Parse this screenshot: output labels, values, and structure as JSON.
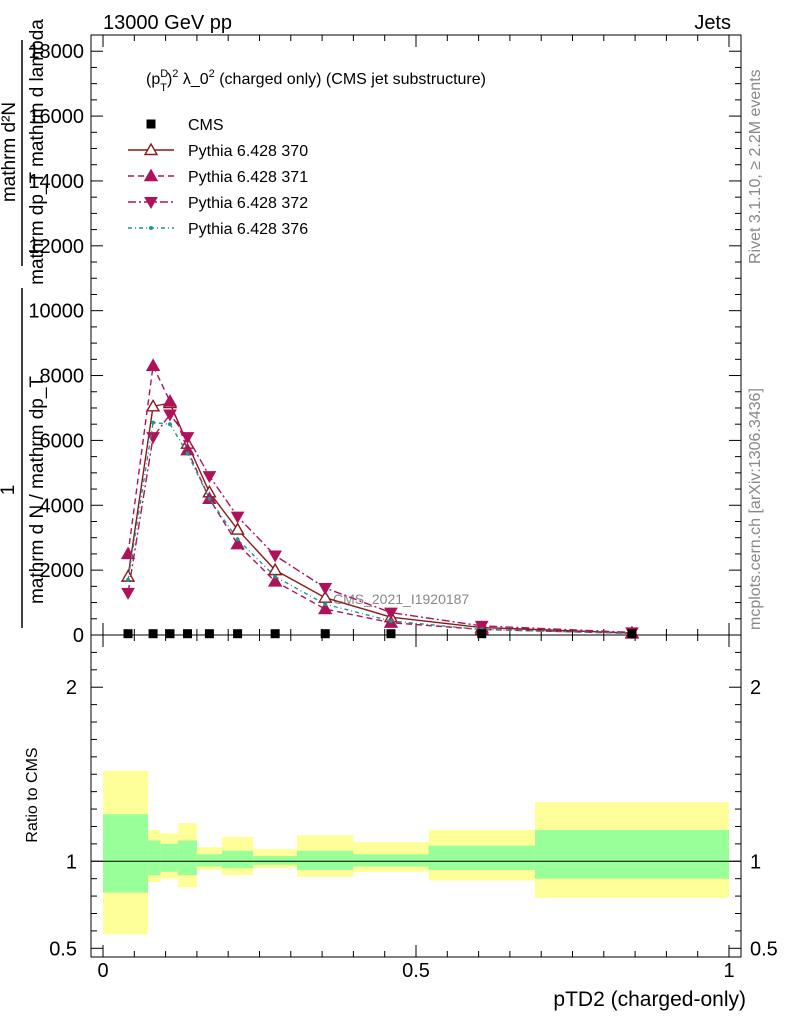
{
  "header": {
    "left": "13000 GeV pp",
    "right": "Jets"
  },
  "side_labels": {
    "rivet": "Rivet 3.1.10, ≥ 2.2M events",
    "mcplots": "mcplots.cern.ch [arXiv:1306.3436]"
  },
  "watermark": "CMS_2021_I1920187",
  "chart_data": {
    "type": "line",
    "title": {
      "pre": "(p",
      "sub": "T",
      "sup": "D",
      "post": ")",
      "sq": "2",
      "rest": " λ_0",
      "sq2": "2",
      "tail": " (charged only) (CMS jet substructure)"
    },
    "xlabel": "pTD2 (charged-only)",
    "ylabel_top": "mathrm d²N",
    "ylabel_top2": "mathrm dp_T mathrm d lambda",
    "ylabel_one": "1",
    "ylabel_bottom": "mathrm d N / mathrm dp_T",
    "ylabel_ratio": "Ratio to CMS",
    "xlim": [
      0,
      1
    ],
    "ylim": [
      0,
      18500
    ],
    "ratio_ylim": [
      0.45,
      2.3
    ],
    "xticks": [
      {
        "v": 0,
        "label": "0"
      },
      {
        "v": 0.5,
        "label": "0.5"
      },
      {
        "v": 1,
        "label": "1"
      }
    ],
    "yticks": [
      {
        "v": 0,
        "label": "0"
      },
      {
        "v": 2000,
        "label": "2000"
      },
      {
        "v": 4000,
        "label": "4000"
      },
      {
        "v": 6000,
        "label": "6000"
      },
      {
        "v": 8000,
        "label": "8000"
      },
      {
        "v": 10000,
        "label": "10000"
      },
      {
        "v": 12000,
        "label": "12000"
      },
      {
        "v": 14000,
        "label": "14000"
      },
      {
        "v": 16000,
        "label": "16000"
      },
      {
        "v": 18000,
        "label": "18000"
      }
    ],
    "ratio_yticks": [
      {
        "v": 0.5,
        "label": "0.5"
      },
      {
        "v": 1,
        "label": "1"
      },
      {
        "v": 2,
        "label": "2"
      }
    ],
    "x": [
      0.04,
      0.08,
      0.107,
      0.135,
      0.17,
      0.215,
      0.275,
      0.355,
      0.46,
      0.605,
      0.845
    ],
    "cms": [
      40,
      40,
      40,
      40,
      40,
      40,
      40,
      40,
      40,
      40,
      40
    ],
    "series": [
      {
        "name": "Pythia 6.428 370",
        "color": "#8b1a1a",
        "marker": "tri-up-open",
        "dash": "",
        "values": [
          1800,
          7050,
          7150,
          5900,
          4400,
          3250,
          2000,
          1150,
          550,
          230,
          60
        ]
      },
      {
        "name": "Pythia 6.428 371",
        "color": "#b0125a",
        "marker": "tri-up",
        "dash": "6,4",
        "values": [
          2500,
          8300,
          7200,
          5700,
          4200,
          2800,
          1650,
          800,
          380,
          170,
          50
        ]
      },
      {
        "name": "Pythia 6.428 372",
        "color": "#b0125a",
        "marker": "tri-down",
        "dash": "8,3,2,3",
        "values": [
          1300,
          6100,
          6800,
          6100,
          4900,
          3650,
          2450,
          1450,
          690,
          280,
          80
        ]
      },
      {
        "name": "Pythia 6.428 376",
        "color": "#1a9a8a",
        "marker": "dot",
        "dash": "4,3,1,3",
        "values": [
          1700,
          6550,
          6500,
          5600,
          4200,
          2950,
          1800,
          950,
          430,
          170,
          50
        ]
      }
    ],
    "legend_data_label": "CMS",
    "ratio_bands": [
      {
        "x0": 0.0,
        "x1": 0.072,
        "y_lo": 0.58,
        "y_hi": 1.52,
        "g_lo": 0.82,
        "g_hi": 1.27
      },
      {
        "x0": 0.072,
        "x1": 0.092,
        "y_lo": 0.88,
        "y_hi": 1.18,
        "g_lo": 0.92,
        "g_hi": 1.12
      },
      {
        "x0": 0.092,
        "x1": 0.12,
        "y_lo": 0.9,
        "y_hi": 1.16,
        "g_lo": 0.94,
        "g_hi": 1.1
      },
      {
        "x0": 0.12,
        "x1": 0.15,
        "y_lo": 0.85,
        "y_hi": 1.22,
        "g_lo": 0.92,
        "g_hi": 1.12
      },
      {
        "x0": 0.15,
        "x1": 0.19,
        "y_lo": 0.95,
        "y_hi": 1.08,
        "g_lo": 0.97,
        "g_hi": 1.04
      },
      {
        "x0": 0.19,
        "x1": 0.24,
        "y_lo": 0.92,
        "y_hi": 1.14,
        "g_lo": 0.96,
        "g_hi": 1.06
      },
      {
        "x0": 0.24,
        "x1": 0.31,
        "y_lo": 0.96,
        "y_hi": 1.07,
        "g_lo": 0.98,
        "g_hi": 1.03
      },
      {
        "x0": 0.31,
        "x1": 0.4,
        "y_lo": 0.91,
        "y_hi": 1.15,
        "g_lo": 0.95,
        "g_hi": 1.06
      },
      {
        "x0": 0.4,
        "x1": 0.52,
        "y_lo": 0.94,
        "y_hi": 1.11,
        "g_lo": 0.97,
        "g_hi": 1.04
      },
      {
        "x0": 0.52,
        "x1": 0.69,
        "y_lo": 0.89,
        "y_hi": 1.18,
        "g_lo": 0.95,
        "g_hi": 1.09
      },
      {
        "x0": 0.69,
        "x1": 1.0,
        "y_lo": 0.79,
        "y_hi": 1.34,
        "g_lo": 0.9,
        "g_hi": 1.18
      }
    ],
    "colors": {
      "outer_band": "#ffff99",
      "inner_band": "#99ff99"
    }
  }
}
